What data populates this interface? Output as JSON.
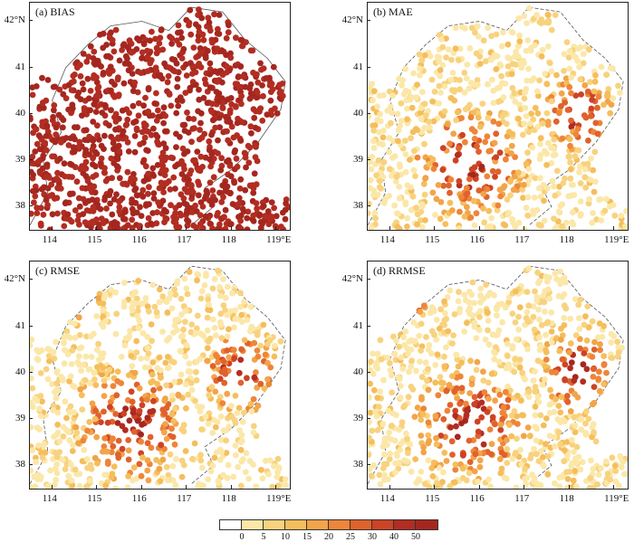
{
  "panels": [
    {
      "id": "a",
      "label": "(a) BIAS",
      "metric": "BIAS"
    },
    {
      "id": "b",
      "label": "(b) MAE",
      "metric": "MAE"
    },
    {
      "id": "c",
      "label": "(c) RMSE",
      "metric": "RMSE"
    },
    {
      "id": "d",
      "label": "(d) RRMSE",
      "metric": "RRMSE"
    }
  ],
  "axes": {
    "lat_labels": [
      "42°N",
      "41",
      "40",
      "39",
      "38"
    ],
    "lat_values": [
      42,
      41,
      40,
      39,
      38
    ],
    "lon_labels": [
      "114",
      "115",
      "116",
      "117",
      "118",
      "119°E"
    ],
    "lon_values": [
      114,
      115,
      116,
      117,
      118,
      119
    ],
    "lon_range": [
      113.5,
      119.3
    ],
    "lat_range": [
      37.5,
      42.4
    ]
  },
  "colorbar": {
    "labels": [
      "0",
      "5",
      "10",
      "15",
      "20",
      "25",
      "30",
      "40",
      "50"
    ],
    "colors": [
      "#ffffff",
      "#fbe7a8",
      "#f8d27e",
      "#f5be5c",
      "#f2a44a",
      "#ee8539",
      "#e0622c",
      "#cc4326",
      "#b22d22",
      "#a4271f"
    ]
  }
}
